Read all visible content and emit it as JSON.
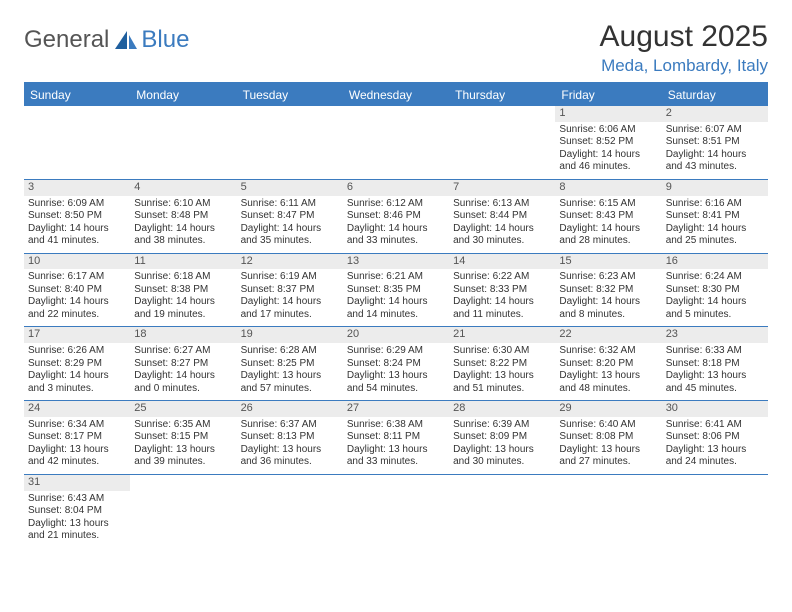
{
  "logo": {
    "text1": "General",
    "text2": "Blue"
  },
  "title": "August 2025",
  "location": "Meda, Lombardy, Italy",
  "colors": {
    "accent": "#3b7bbf",
    "daynum_bg": "#ececec",
    "text": "#333333",
    "logo_gray": "#555555",
    "background": "#ffffff"
  },
  "weekdays": [
    "Sunday",
    "Monday",
    "Tuesday",
    "Wednesday",
    "Thursday",
    "Friday",
    "Saturday"
  ],
  "weeks": [
    [
      null,
      null,
      null,
      null,
      null,
      {
        "n": "1",
        "sr": "6:06 AM",
        "ss": "8:52 PM",
        "dl": "14 hours and 46 minutes."
      },
      {
        "n": "2",
        "sr": "6:07 AM",
        "ss": "8:51 PM",
        "dl": "14 hours and 43 minutes."
      }
    ],
    [
      {
        "n": "3",
        "sr": "6:09 AM",
        "ss": "8:50 PM",
        "dl": "14 hours and 41 minutes."
      },
      {
        "n": "4",
        "sr": "6:10 AM",
        "ss": "8:48 PM",
        "dl": "14 hours and 38 minutes."
      },
      {
        "n": "5",
        "sr": "6:11 AM",
        "ss": "8:47 PM",
        "dl": "14 hours and 35 minutes."
      },
      {
        "n": "6",
        "sr": "6:12 AM",
        "ss": "8:46 PM",
        "dl": "14 hours and 33 minutes."
      },
      {
        "n": "7",
        "sr": "6:13 AM",
        "ss": "8:44 PM",
        "dl": "14 hours and 30 minutes."
      },
      {
        "n": "8",
        "sr": "6:15 AM",
        "ss": "8:43 PM",
        "dl": "14 hours and 28 minutes."
      },
      {
        "n": "9",
        "sr": "6:16 AM",
        "ss": "8:41 PM",
        "dl": "14 hours and 25 minutes."
      }
    ],
    [
      {
        "n": "10",
        "sr": "6:17 AM",
        "ss": "8:40 PM",
        "dl": "14 hours and 22 minutes."
      },
      {
        "n": "11",
        "sr": "6:18 AM",
        "ss": "8:38 PM",
        "dl": "14 hours and 19 minutes."
      },
      {
        "n": "12",
        "sr": "6:19 AM",
        "ss": "8:37 PM",
        "dl": "14 hours and 17 minutes."
      },
      {
        "n": "13",
        "sr": "6:21 AM",
        "ss": "8:35 PM",
        "dl": "14 hours and 14 minutes."
      },
      {
        "n": "14",
        "sr": "6:22 AM",
        "ss": "8:33 PM",
        "dl": "14 hours and 11 minutes."
      },
      {
        "n": "15",
        "sr": "6:23 AM",
        "ss": "8:32 PM",
        "dl": "14 hours and 8 minutes."
      },
      {
        "n": "16",
        "sr": "6:24 AM",
        "ss": "8:30 PM",
        "dl": "14 hours and 5 minutes."
      }
    ],
    [
      {
        "n": "17",
        "sr": "6:26 AM",
        "ss": "8:29 PM",
        "dl": "14 hours and 3 minutes."
      },
      {
        "n": "18",
        "sr": "6:27 AM",
        "ss": "8:27 PM",
        "dl": "14 hours and 0 minutes."
      },
      {
        "n": "19",
        "sr": "6:28 AM",
        "ss": "8:25 PM",
        "dl": "13 hours and 57 minutes."
      },
      {
        "n": "20",
        "sr": "6:29 AM",
        "ss": "8:24 PM",
        "dl": "13 hours and 54 minutes."
      },
      {
        "n": "21",
        "sr": "6:30 AM",
        "ss": "8:22 PM",
        "dl": "13 hours and 51 minutes."
      },
      {
        "n": "22",
        "sr": "6:32 AM",
        "ss": "8:20 PM",
        "dl": "13 hours and 48 minutes."
      },
      {
        "n": "23",
        "sr": "6:33 AM",
        "ss": "8:18 PM",
        "dl": "13 hours and 45 minutes."
      }
    ],
    [
      {
        "n": "24",
        "sr": "6:34 AM",
        "ss": "8:17 PM",
        "dl": "13 hours and 42 minutes."
      },
      {
        "n": "25",
        "sr": "6:35 AM",
        "ss": "8:15 PM",
        "dl": "13 hours and 39 minutes."
      },
      {
        "n": "26",
        "sr": "6:37 AM",
        "ss": "8:13 PM",
        "dl": "13 hours and 36 minutes."
      },
      {
        "n": "27",
        "sr": "6:38 AM",
        "ss": "8:11 PM",
        "dl": "13 hours and 33 minutes."
      },
      {
        "n": "28",
        "sr": "6:39 AM",
        "ss": "8:09 PM",
        "dl": "13 hours and 30 minutes."
      },
      {
        "n": "29",
        "sr": "6:40 AM",
        "ss": "8:08 PM",
        "dl": "13 hours and 27 minutes."
      },
      {
        "n": "30",
        "sr": "6:41 AM",
        "ss": "8:06 PM",
        "dl": "13 hours and 24 minutes."
      }
    ],
    [
      {
        "n": "31",
        "sr": "6:43 AM",
        "ss": "8:04 PM",
        "dl": "13 hours and 21 minutes."
      },
      null,
      null,
      null,
      null,
      null,
      null
    ]
  ],
  "labels": {
    "sunrise": "Sunrise: ",
    "sunset": "Sunset: ",
    "daylight": "Daylight: "
  }
}
